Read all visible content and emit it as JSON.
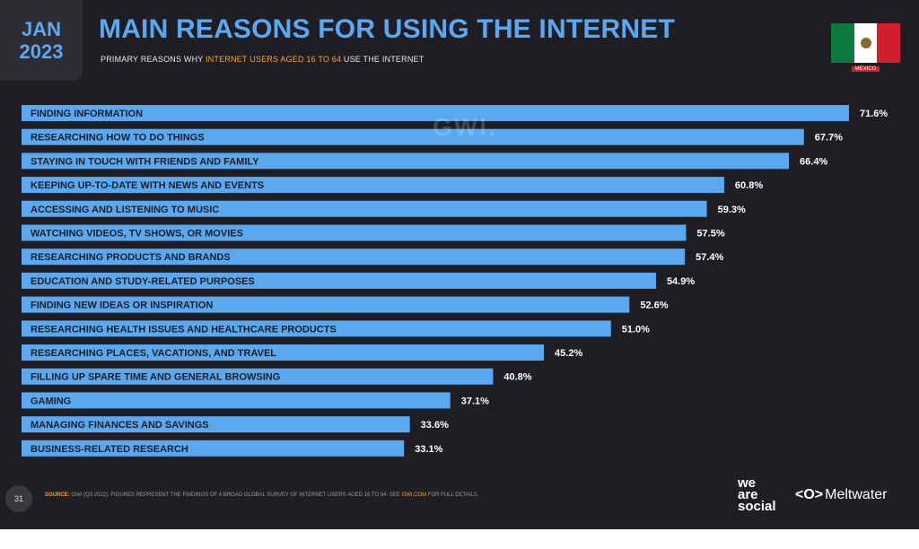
{
  "header": {
    "month": "JAN",
    "year": "2023",
    "title": "MAIN REASONS FOR USING THE INTERNET",
    "subtitle_pre": "PRIMARY REASONS WHY ",
    "subtitle_highlight": "INTERNET USERS AGED 16 TO 64",
    "subtitle_post": " USE THE INTERNET",
    "country": "MEXICO",
    "watermark": "GWI."
  },
  "footer": {
    "page_number": "31",
    "source_label": "SOURCE:",
    "source_text": " GWI (Q3 2022). FIGURES REPRESENT THE FINDINGS OF A BROAD GLOBAL SURVEY OF INTERNET USERS AGED 16 TO 64. SEE ",
    "source_link": "GWI.COM",
    "source_tail": " FOR FULL DETAILS.",
    "brand_we": "we",
    "brand_are": "are",
    "brand_social": "social",
    "brand_meltwater_logo": "<O>",
    "brand_meltwater": "Meltwater"
  },
  "colors": {
    "background": "#1f1e24",
    "bar": "#5aa8f0",
    "accent": "#f3a33c",
    "flag_green": "#0a7a3e",
    "flag_red": "#d21f2b"
  },
  "chart_data": {
    "type": "bar",
    "orientation": "horizontal",
    "categories": [
      "FINDING INFORMATION",
      "RESEARCHING HOW TO DO THINGS",
      "STAYING IN TOUCH WITH FRIENDS AND FAMILY",
      "KEEPING UP-TO-DATE WITH NEWS AND EVENTS",
      "ACCESSING AND LISTENING TO MUSIC",
      "WATCHING VIDEOS, TV SHOWS, OR MOVIES",
      "RESEARCHING PRODUCTS AND BRANDS",
      "EDUCATION AND STUDY-RELATED PURPOSES",
      "FINDING NEW IDEAS OR INSPIRATION",
      "RESEARCHING HEALTH ISSUES AND HEALTHCARE PRODUCTS",
      "RESEARCHING PLACES, VACATIONS, AND TRAVEL",
      "FILLING UP SPARE TIME AND GENERAL BROWSING",
      "GAMING",
      "MANAGING FINANCES AND SAVINGS",
      "BUSINESS-RELATED RESEARCH"
    ],
    "values": [
      71.6,
      67.7,
      66.4,
      60.8,
      59.3,
      57.5,
      57.4,
      54.9,
      52.6,
      51.0,
      45.2,
      40.8,
      37.1,
      33.6,
      33.1
    ],
    "value_labels": [
      "71.6%",
      "67.7%",
      "66.4%",
      "60.8%",
      "59.3%",
      "57.5%",
      "57.4%",
      "54.9%",
      "52.6%",
      "51.0%",
      "45.2%",
      "40.8%",
      "37.1%",
      "33.6%",
      "33.1%"
    ],
    "unit": "%",
    "grid": false,
    "legend": "none"
  }
}
